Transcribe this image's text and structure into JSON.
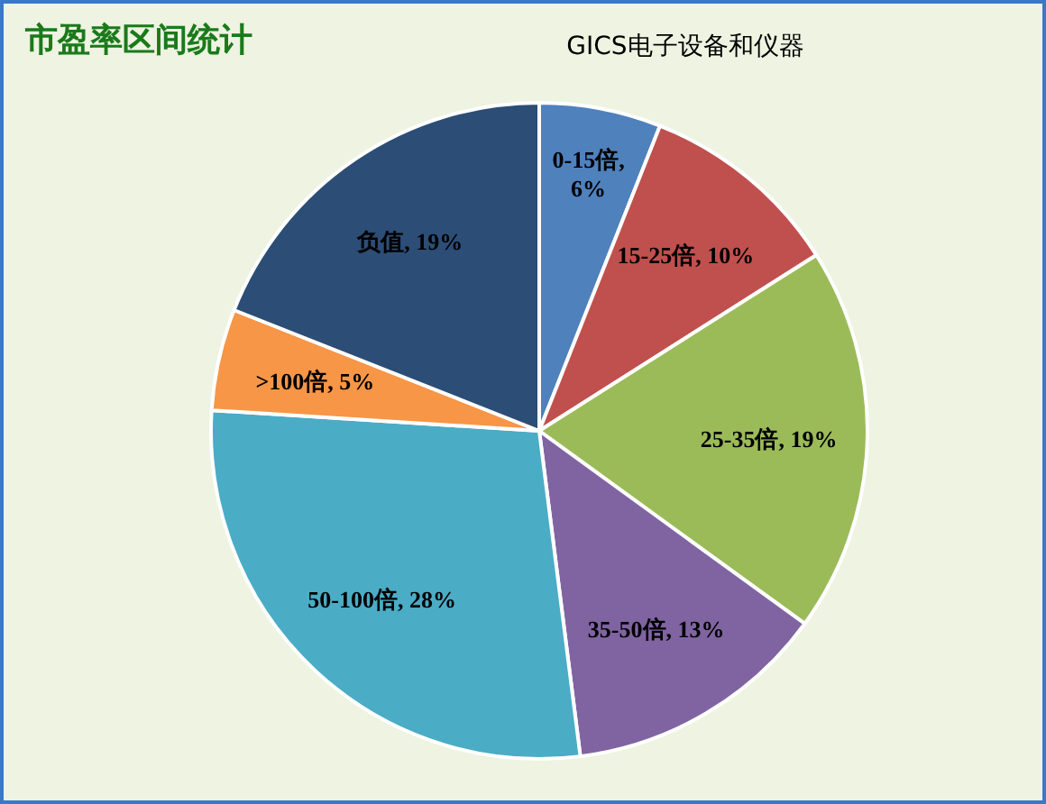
{
  "chart_data": {
    "type": "pie",
    "title": "市盈率区间统计",
    "subtitle": "GICS电子设备和仪器",
    "categories": [
      "0-15倍",
      "15-25倍",
      "25-35倍",
      "35-50倍",
      "50-100倍",
      ">100倍",
      "负值"
    ],
    "values": [
      6,
      10,
      19,
      13,
      28,
      5,
      19
    ],
    "colors": [
      "#4f81bd",
      "#c0504d",
      "#9bbb59",
      "#8064a2",
      "#4bacc6",
      "#f79646",
      "#2c4d75"
    ],
    "value_labels": [
      ", 6%",
      ", 10%",
      ", 19%",
      ", 13%",
      ", 28%",
      ", 5%",
      ", 19%"
    ]
  }
}
